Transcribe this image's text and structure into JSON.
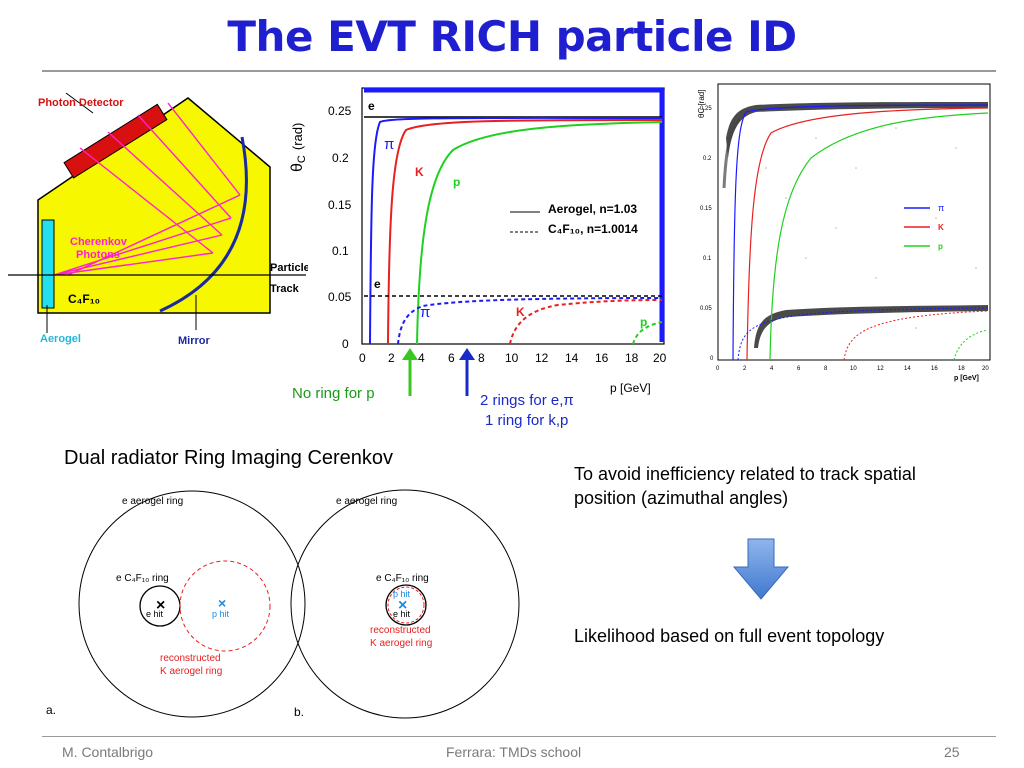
{
  "slide": {
    "title": "The EVT RICH particle ID",
    "footer": {
      "author": "M. Contalbrigo",
      "event": "Ferrara: TMDs school",
      "page": "25"
    }
  },
  "detector_schematic": {
    "photon_detector": "Photon Detector",
    "cherenkov_line1": "Cherenkov",
    "cherenkov_line2": "Photons",
    "particle": "Particle",
    "track": "Track",
    "gas": "C₄F₁₀",
    "aerogel": "Aerogel",
    "mirror": "Mirror"
  },
  "theta_plot": {
    "ylabel": "θ",
    "ylabel_sub": "C",
    "ylabel_unit": "(rad)",
    "y_ticks": [
      "0.25",
      "0.2",
      "0.15",
      "0.1",
      "0.05",
      "0"
    ],
    "x_ticks": [
      "0",
      "2",
      "4",
      "6",
      "8",
      "10",
      "12",
      "14",
      "16",
      "18",
      "20"
    ],
    "xlabel": "p [GeV]",
    "legend_aerogel": "Aerogel, n=1.03",
    "legend_gas": "C₄F₁₀, n=1.0014",
    "label_e_top": "e",
    "label_pi_top": "π",
    "label_k_top": "K",
    "label_p_top": "p",
    "label_e_low": "e",
    "label_pi_low": "π",
    "label_k_low": "K",
    "label_p_low": "p",
    "colors": {
      "e": "#000000",
      "pi": "#1a1aff",
      "K": "#e82020",
      "p": "#20d020"
    }
  },
  "scatter_plot": {
    "ylabel": "θC [rad]",
    "xlabel": "p [GeV]",
    "y_ticks": [
      "0.25",
      "0.2",
      "0.15",
      "0.1",
      "0.05",
      "0"
    ],
    "x_ticks": [
      "0",
      "2",
      "4",
      "6",
      "8",
      "10",
      "12",
      "14",
      "16",
      "18",
      "20"
    ],
    "legend_pi": "π",
    "legend_k": "K",
    "legend_p": "p"
  },
  "annotations": {
    "no_ring": "No ring for p",
    "two_rings": "2 rings for e,π",
    "one_ring": "1 ring for k,p"
  },
  "rings": {
    "caption": "Dual radiator Ring Imaging Cerenkov",
    "a": {
      "panel_label": "a.",
      "aerogel_ring": "e aerogel ring",
      "gas_ring": "e C₄F₁₀ ring",
      "e_hit": "e hit",
      "p_hit": "p hit",
      "reco_line1": "reconstructed",
      "reco_line2": "K aerogel ring"
    },
    "b": {
      "panel_label": "b.",
      "aerogel_ring": "e aerogel ring",
      "gas_ring": "e C₄F₁₀ ring",
      "p_hit": "p hit",
      "e_hit": "e hit",
      "reco_line1": "reconstructed",
      "reco_line2": "K aerogel ring"
    }
  },
  "notes": {
    "track_position": "To avoid inefficiency related to track spatial position (azimuthal angles)",
    "likelihood": "Likelihood based on full event topology"
  },
  "icons": {
    "flow": "down-arrow-icon",
    "marker": "up-arrow-icon"
  }
}
